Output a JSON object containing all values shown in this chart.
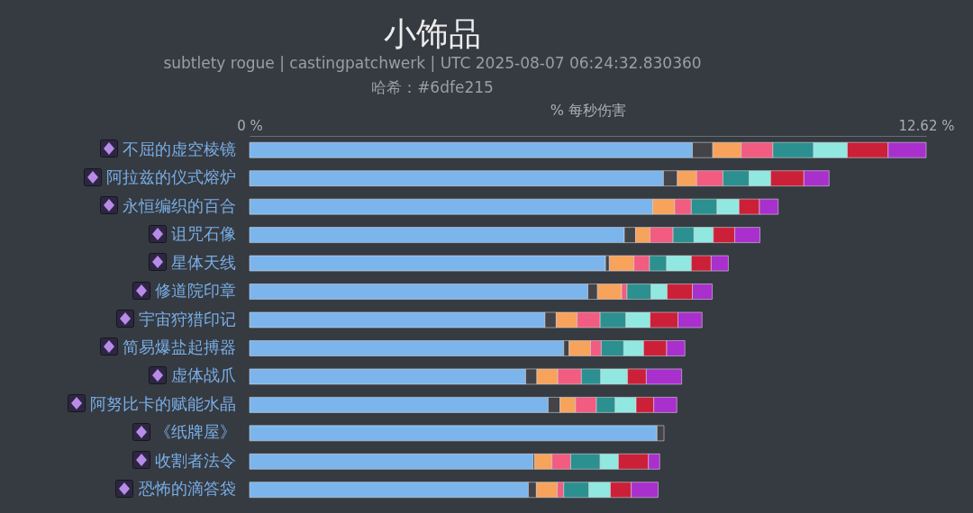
{
  "chart_data": {
    "type": "bar",
    "title": "小饰品",
    "subtitle": "subtlety rogue | castingpatchwerk | UTC 2025-08-07 06:24:32.830360",
    "annotations": [
      "哈希：#6dfe215"
    ],
    "xlabel": "% 每秒伤害",
    "orientation": "horizontal",
    "stacked": true,
    "categories": [
      "不屈的虚空棱镜",
      "阿拉兹的仪式熔炉",
      "永恒编织的百合",
      "诅咒石像",
      "星体天线",
      "修道院印章",
      "宇宙狩猎印记",
      "简易爆盐起搏器",
      "虚体战爪",
      "阿努比卡的赋能水晶",
      "《纸牌屋》",
      "收割者法令",
      "恐怖的滴答袋"
    ],
    "xlim": [
      0,
      12.62
    ],
    "xticks": [
      {
        "value": 0,
        "label": "0 %"
      },
      {
        "value": 12.62,
        "label": "12.62 %"
      }
    ],
    "grid": false,
    "series": [
      {
        "color": "#7cb5ec",
        "values": [
          8.26,
          7.72,
          7.52,
          6.99,
          6.64,
          6.31,
          5.51,
          5.86,
          5.15,
          5.57,
          7.6,
          5.29,
          5.2
        ]
      },
      {
        "color": "#434348",
        "values": [
          0.38,
          0.26,
          null,
          0.21,
          0.07,
          0.18,
          0.21,
          0.1,
          0.21,
          0.22,
          0.13,
          0.03,
          0.15
        ]
      },
      {
        "color": "#f7a35c",
        "values": [
          0.53,
          0.36,
          0.41,
          0.27,
          0.46,
          0.45,
          0.39,
          0.4,
          0.39,
          0.29,
          null,
          0.32,
          0.39
        ]
      },
      {
        "color": "#f15c80",
        "values": [
          0.59,
          0.49,
          0.31,
          0.43,
          0.29,
          0.1,
          0.43,
          0.2,
          0.44,
          0.39,
          null,
          0.35,
          0.12
        ]
      },
      {
        "color": "#2b908f",
        "values": [
          0.76,
          0.49,
          0.48,
          0.39,
          0.32,
          0.45,
          0.48,
          0.42,
          0.36,
          0.35,
          null,
          0.55,
          0.47
        ]
      },
      {
        "color": "#91e8e1",
        "values": [
          0.63,
          0.4,
          0.41,
          0.36,
          0.46,
          0.3,
          0.45,
          0.37,
          0.5,
          0.39,
          null,
          0.34,
          0.4
        ]
      },
      {
        "color": "#cc2038",
        "values": [
          0.76,
          0.62,
          0.38,
          0.4,
          0.37,
          0.47,
          0.52,
          0.43,
          0.35,
          0.33,
          null,
          0.56,
          0.39
        ]
      },
      {
        "color": "#a930cc",
        "values": [
          0.71,
          0.47,
          0.35,
          0.47,
          0.32,
          0.37,
          0.45,
          0.34,
          0.66,
          0.43,
          null,
          0.21,
          0.5
        ]
      }
    ]
  }
}
